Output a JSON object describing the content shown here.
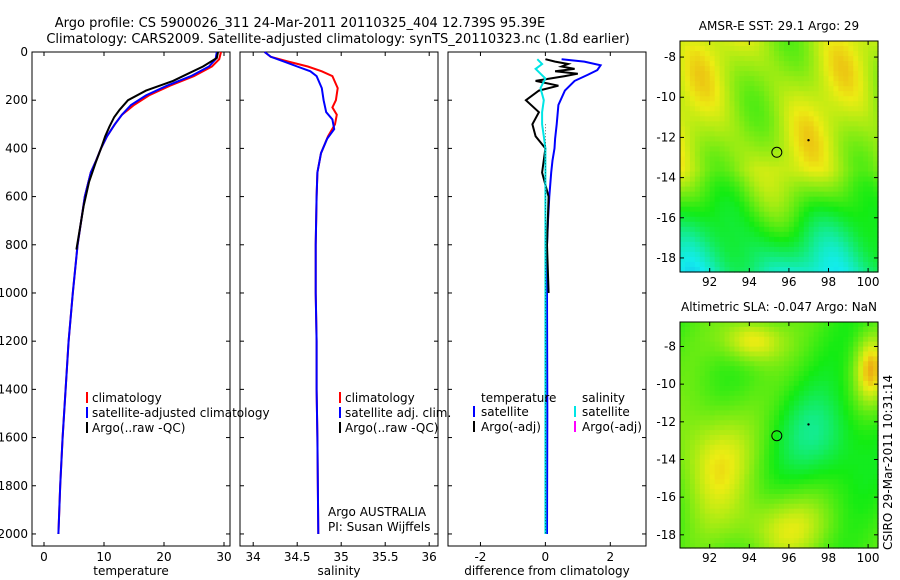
{
  "header": {
    "line1": "Argo profile: CS 5900026_311 24-Mar-2011 20110325_404 12.739S 95.39E",
    "line2": "Climatology: CARS2009. Satellite-adjusted climatology: synTS_20110323.nc (1.8d earlier)"
  },
  "side_label": "CSIRO 29-Mar-2011 10:31:14",
  "colors": {
    "climatology": "#ff0000",
    "satellite": "#0000ff",
    "argo": "#000000",
    "sal_sat": "#00e5e5",
    "sal_argo": "#ff00ff"
  },
  "chart_data": [
    {
      "type": "line",
      "id": "temperature",
      "xlabel": "temperature",
      "xlim": [
        -2,
        31
      ],
      "ylim": [
        2050,
        0
      ],
      "xticks": [
        0,
        10,
        20,
        30
      ],
      "yticks": [
        0,
        200,
        400,
        600,
        800,
        1000,
        1200,
        1400,
        1600,
        1800,
        2000
      ],
      "series": [
        {
          "name": "climatology",
          "color": "#ff0000",
          "x": [
            29.5,
            29.2,
            28.0,
            25.0,
            21.0,
            17.5,
            15.0,
            13.0,
            11.8,
            10.5,
            9.5,
            8.7,
            7.8,
            6.8,
            6.2,
            5.6,
            4.8,
            4.1,
            3.6,
            3.1,
            2.7,
            2.4
          ],
          "y": [
            0,
            30,
            60,
            100,
            140,
            180,
            220,
            260,
            300,
            350,
            400,
            450,
            500,
            600,
            700,
            800,
            1000,
            1200,
            1400,
            1600,
            1800,
            2000
          ]
        },
        {
          "name": "satellite-adjusted climatology",
          "color": "#0000ff",
          "x": [
            28.8,
            28.6,
            27.5,
            24.5,
            20.5,
            17.0,
            14.5,
            13.0,
            11.8,
            10.5,
            9.5,
            8.7,
            7.8,
            6.8,
            6.2,
            5.6,
            4.8,
            4.1,
            3.6,
            3.1,
            2.7,
            2.4
          ],
          "y": [
            0,
            30,
            60,
            100,
            140,
            180,
            220,
            260,
            300,
            350,
            400,
            450,
            500,
            600,
            700,
            800,
            1000,
            1200,
            1400,
            1600,
            1800,
            2000
          ]
        },
        {
          "name": "Argo(..raw -QC)",
          "color": "#000000",
          "x": [
            29.0,
            28.8,
            26.5,
            24.0,
            21.5,
            17.0,
            14.0,
            12.6,
            11.7,
            10.9,
            10.2,
            9.5,
            8.6,
            7.5,
            6.6,
            6.0,
            5.4
          ],
          "y": [
            0,
            25,
            60,
            90,
            120,
            160,
            200,
            240,
            270,
            310,
            350,
            400,
            460,
            540,
            640,
            730,
            820
          ]
        }
      ],
      "legend": [
        "climatology",
        "satellite-adjusted climatology",
        "Argo(..raw -QC)"
      ]
    },
    {
      "type": "line",
      "id": "salinity",
      "xlabel": "salinity",
      "xlim": [
        33.85,
        36.1
      ],
      "ylim": [
        2050,
        0
      ],
      "xticks": [
        34,
        34.5,
        35,
        35.5,
        36
      ],
      "series": [
        {
          "name": "climatology",
          "color": "#ff0000",
          "x": [
            34.13,
            34.2,
            34.4,
            34.62,
            34.78,
            34.9,
            34.96,
            34.94,
            34.9,
            34.95,
            34.93,
            34.85,
            34.77,
            34.73,
            34.72,
            34.71,
            34.71,
            34.72,
            34.72,
            34.73,
            34.74
          ],
          "y": [
            0,
            20,
            40,
            60,
            80,
            100,
            150,
            200,
            230,
            260,
            300,
            350,
            420,
            500,
            600,
            800,
            1000,
            1200,
            1400,
            1600,
            2000
          ]
        },
        {
          "name": "satellite adj. clim.",
          "color": "#0000ff",
          "x": [
            34.13,
            34.2,
            34.35,
            34.5,
            34.65,
            34.72,
            34.78,
            34.8,
            34.83,
            34.9,
            34.92,
            34.84,
            34.77,
            34.73,
            34.72,
            34.71,
            34.71,
            34.72,
            34.72,
            34.73,
            34.74
          ],
          "y": [
            0,
            20,
            40,
            60,
            80,
            100,
            150,
            200,
            250,
            280,
            320,
            360,
            420,
            500,
            600,
            800,
            1000,
            1200,
            1400,
            1600,
            2000
          ]
        }
      ],
      "legend": [
        "climatology",
        "satellite adj. clim.",
        "Argo(..raw -QC)"
      ],
      "annotations": [
        "Argo AUSTRALIA",
        "PI: Susan Wijffels"
      ]
    },
    {
      "type": "line",
      "id": "difference",
      "xlabel": "difference from climatology",
      "xlim": [
        -3,
        3.1
      ],
      "ylim": [
        2050,
        0
      ],
      "xticks": [
        -2,
        0,
        2
      ],
      "series": [
        {
          "name": "temperature satellite",
          "color": "#0000ff",
          "x": [
            0.5,
            1.2,
            1.7,
            1.6,
            1.3,
            0.9,
            0.6,
            0.4,
            0.35,
            0.3,
            0.28,
            0.22,
            0.18,
            0.12,
            0.08,
            0.05,
            0.05,
            0.06,
            0.05
          ],
          "y": [
            30,
            40,
            55,
            75,
            95,
            120,
            160,
            220,
            300,
            360,
            400,
            450,
            500,
            600,
            700,
            800,
            1000,
            1500,
            2000
          ]
        },
        {
          "name": "temperature Argo(-adj)",
          "color": "#000000",
          "x": [
            0.0,
            0.3,
            0.7,
            0.5,
            0.9,
            0.3,
            1.0,
            0.6,
            -0.3,
            0.4,
            -0.2,
            -0.6,
            -0.2,
            -0.4,
            -0.3,
            0.0,
            -0.1,
            0.1,
            0.05,
            0.1
          ],
          "y": [
            30,
            40,
            50,
            60,
            70,
            80,
            90,
            100,
            120,
            140,
            160,
            200,
            250,
            300,
            350,
            400,
            500,
            600,
            800,
            1000
          ]
        },
        {
          "name": "salinity satellite",
          "color": "#00e5e5",
          "x": [
            -0.25,
            -0.1,
            -0.3,
            -0.15,
            0.0,
            -0.15,
            -0.05,
            -0.1,
            -0.1,
            -0.05,
            0.0,
            0.0,
            0.0,
            0.0,
            0.0
          ],
          "y": [
            30,
            50,
            70,
            90,
            110,
            150,
            200,
            250,
            300,
            350,
            400,
            500,
            800,
            1200,
            2000
          ]
        }
      ],
      "legend_titles": [
        "temperature",
        "salinity"
      ],
      "legend": [
        "satellite",
        "Argo(-adj)",
        "satellite",
        "Argo(-adj)"
      ]
    },
    {
      "type": "heatmap",
      "id": "sst_map",
      "title": "AMSR-E SST: 29.1 Argo: 29",
      "xlim": [
        90.5,
        100.5
      ],
      "ylim": [
        -18.7,
        -7.2
      ],
      "xticks": [
        92,
        94,
        96,
        98,
        100
      ],
      "yticks": [
        -8,
        -10,
        -12,
        -14,
        -16,
        -18
      ],
      "marker": {
        "lon": 95.39,
        "lat": -12.739
      }
    },
    {
      "type": "heatmap",
      "id": "sla_map",
      "title": "Altimetric SLA: -0.047 Argo: NaN",
      "xlim": [
        90.5,
        100.5
      ],
      "ylim": [
        -18.7,
        -6.7
      ],
      "xticks": [
        92,
        94,
        96,
        98,
        100
      ],
      "yticks": [
        -8,
        -10,
        -12,
        -14,
        -16,
        -18
      ],
      "marker": {
        "lon": 95.39,
        "lat": -12.739
      }
    }
  ]
}
